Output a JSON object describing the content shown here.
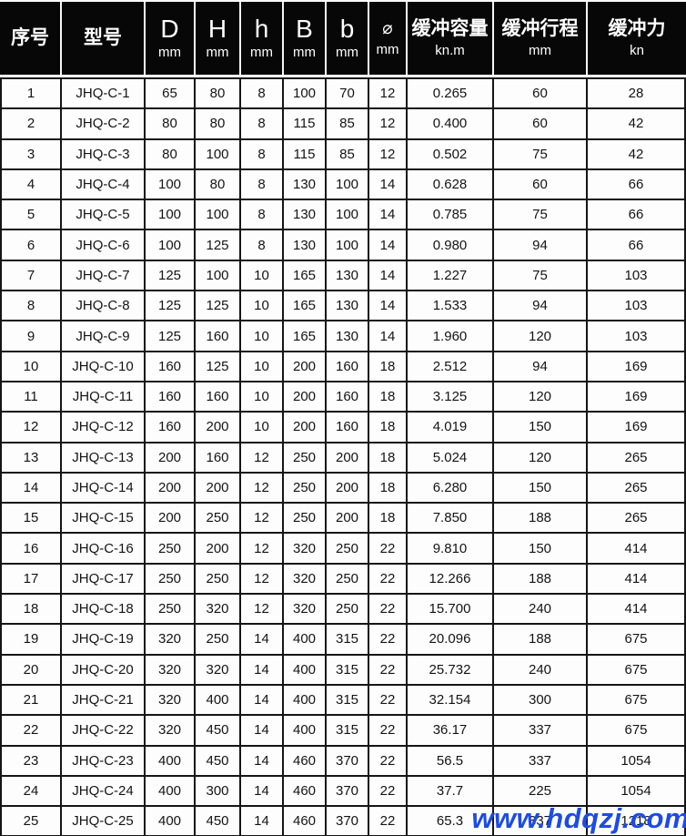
{
  "table": {
    "columns": [
      {
        "label": "序号",
        "sub": ""
      },
      {
        "label": "型号",
        "sub": ""
      },
      {
        "label": "D",
        "sub": "mm"
      },
      {
        "label": "H",
        "sub": "mm"
      },
      {
        "label": "h",
        "sub": "mm"
      },
      {
        "label": "B",
        "sub": "mm"
      },
      {
        "label": "b",
        "sub": "mm"
      },
      {
        "label": "⌀",
        "sub": "mm"
      },
      {
        "label": "缓冲容量",
        "sub": "kn.m"
      },
      {
        "label": "缓冲行程",
        "sub": "mm"
      },
      {
        "label": "缓冲力",
        "sub": "kn"
      }
    ],
    "rows": [
      [
        "1",
        "JHQ-C-1",
        "65",
        "80",
        "8",
        "100",
        "70",
        "12",
        "0.265",
        "60",
        "28"
      ],
      [
        "2",
        "JHQ-C-2",
        "80",
        "80",
        "8",
        "115",
        "85",
        "12",
        "0.400",
        "60",
        "42"
      ],
      [
        "3",
        "JHQ-C-3",
        "80",
        "100",
        "8",
        "115",
        "85",
        "12",
        "0.502",
        "75",
        "42"
      ],
      [
        "4",
        "JHQ-C-4",
        "100",
        "80",
        "8",
        "130",
        "100",
        "14",
        "0.628",
        "60",
        "66"
      ],
      [
        "5",
        "JHQ-C-5",
        "100",
        "100",
        "8",
        "130",
        "100",
        "14",
        "0.785",
        "75",
        "66"
      ],
      [
        "6",
        "JHQ-C-6",
        "100",
        "125",
        "8",
        "130",
        "100",
        "14",
        "0.980",
        "94",
        "66"
      ],
      [
        "7",
        "JHQ-C-7",
        "125",
        "100",
        "10",
        "165",
        "130",
        "14",
        "1.227",
        "75",
        "103"
      ],
      [
        "8",
        "JHQ-C-8",
        "125",
        "125",
        "10",
        "165",
        "130",
        "14",
        "1.533",
        "94",
        "103"
      ],
      [
        "9",
        "JHQ-C-9",
        "125",
        "160",
        "10",
        "165",
        "130",
        "14",
        "1.960",
        "120",
        "103"
      ],
      [
        "10",
        "JHQ-C-10",
        "160",
        "125",
        "10",
        "200",
        "160",
        "18",
        "2.512",
        "94",
        "169"
      ],
      [
        "11",
        "JHQ-C-11",
        "160",
        "160",
        "10",
        "200",
        "160",
        "18",
        "3.125",
        "120",
        "169"
      ],
      [
        "12",
        "JHQ-C-12",
        "160",
        "200",
        "10",
        "200",
        "160",
        "18",
        "4.019",
        "150",
        "169"
      ],
      [
        "13",
        "JHQ-C-13",
        "200",
        "160",
        "12",
        "250",
        "200",
        "18",
        "5.024",
        "120",
        "265"
      ],
      [
        "14",
        "JHQ-C-14",
        "200",
        "200",
        "12",
        "250",
        "200",
        "18",
        "6.280",
        "150",
        "265"
      ],
      [
        "15",
        "JHQ-C-15",
        "200",
        "250",
        "12",
        "250",
        "200",
        "18",
        "7.850",
        "188",
        "265"
      ],
      [
        "16",
        "JHQ-C-16",
        "250",
        "200",
        "12",
        "320",
        "250",
        "22",
        "9.810",
        "150",
        "414"
      ],
      [
        "17",
        "JHQ-C-17",
        "250",
        "250",
        "12",
        "320",
        "250",
        "22",
        "12.266",
        "188",
        "414"
      ],
      [
        "18",
        "JHQ-C-18",
        "250",
        "320",
        "12",
        "320",
        "250",
        "22",
        "15.700",
        "240",
        "414"
      ],
      [
        "19",
        "JHQ-C-19",
        "320",
        "250",
        "14",
        "400",
        "315",
        "22",
        "20.096",
        "188",
        "675"
      ],
      [
        "20",
        "JHQ-C-20",
        "320",
        "320",
        "14",
        "400",
        "315",
        "22",
        "25.732",
        "240",
        "675"
      ],
      [
        "21",
        "JHQ-C-21",
        "320",
        "400",
        "14",
        "400",
        "315",
        "22",
        "32.154",
        "300",
        "675"
      ],
      [
        "22",
        "JHQ-C-22",
        "320",
        "450",
        "14",
        "400",
        "315",
        "22",
        "36.17",
        "337",
        "675"
      ],
      [
        "23",
        "JHQ-C-23",
        "400",
        "450",
        "14",
        "460",
        "370",
        "22",
        "56.5",
        "337",
        "1054"
      ],
      [
        "24",
        "JHQ-C-24",
        "400",
        "300",
        "14",
        "460",
        "370",
        "22",
        "37.7",
        "225",
        "1054"
      ],
      [
        "25",
        "JHQ-C-25",
        "400",
        "450",
        "14",
        "460",
        "370",
        "22",
        "65.3",
        "337",
        "1218"
      ]
    ]
  },
  "watermark": {
    "text": "www.hdqzj.com",
    "color": "#1c4be6"
  },
  "colors": {
    "header_bg": "#070707",
    "header_text": "#ffffff",
    "border": "#151515",
    "body_bg": "#fdfdfd",
    "body_text": "#141414"
  }
}
